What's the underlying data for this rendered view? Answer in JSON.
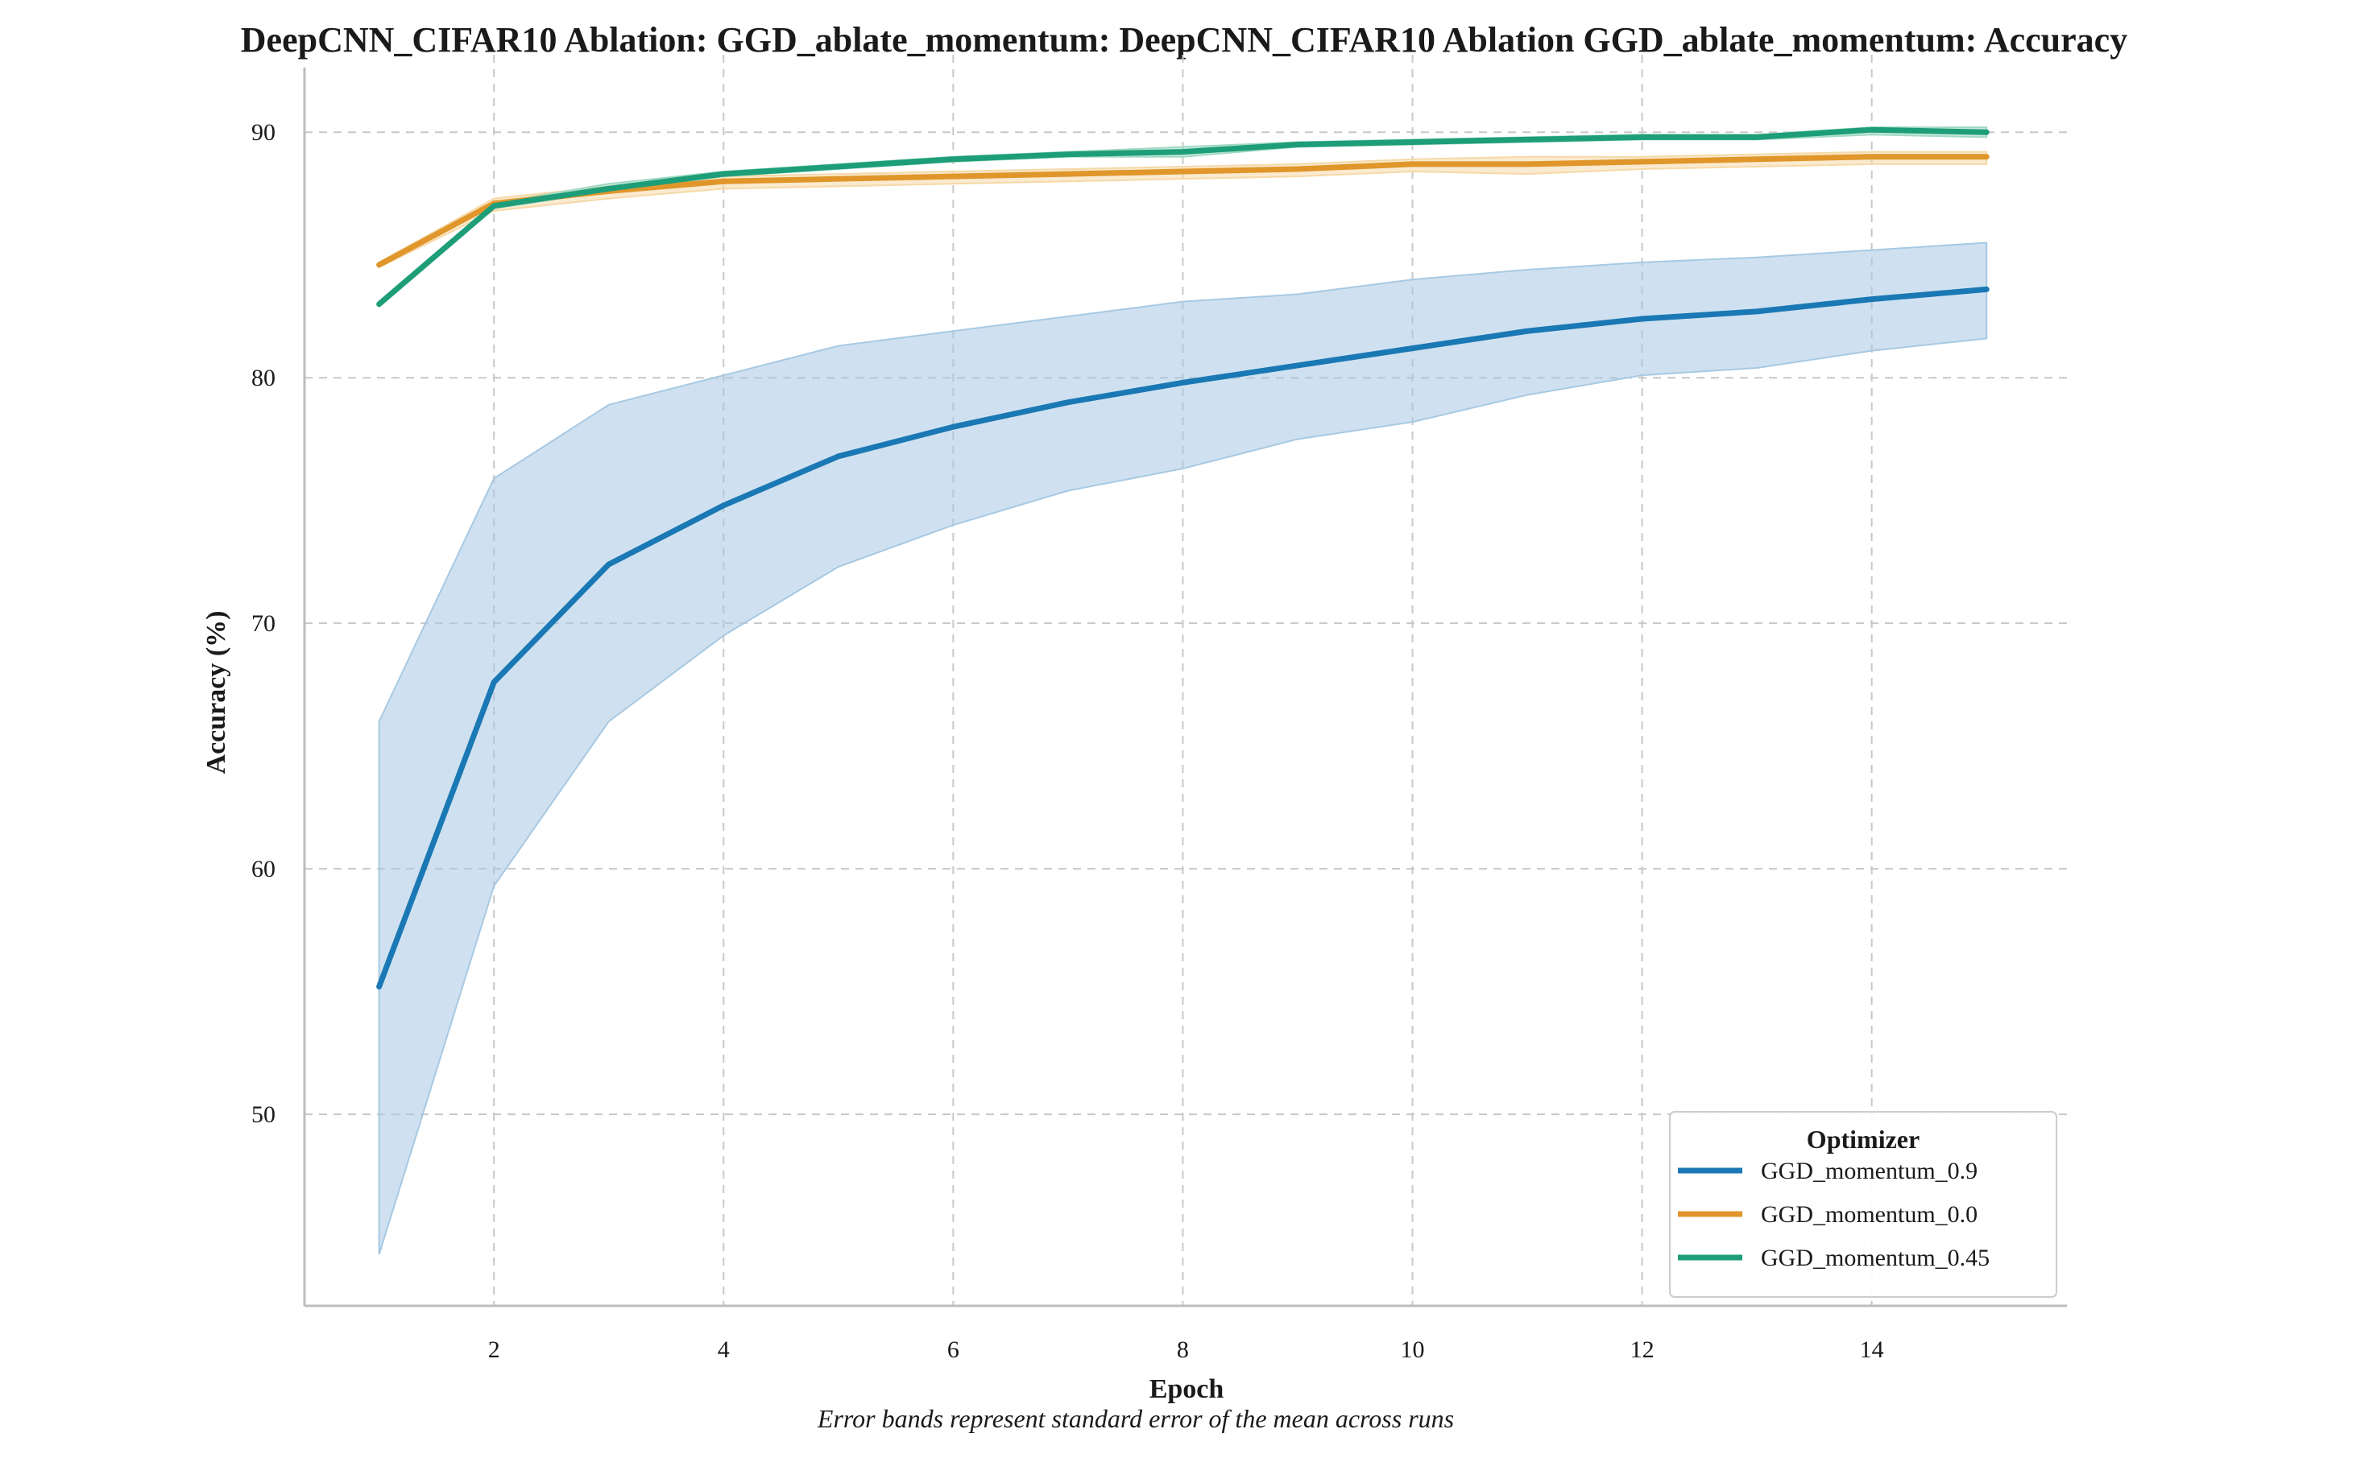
{
  "chart_data": {
    "type": "line",
    "title": "DeepCNN_CIFAR10 Ablation: GGD_ablate_momentum: DeepCNN_CIFAR10 Ablation GGD_ablate_momentum: Accuracy",
    "xlabel": "Epoch",
    "ylabel": "Accuracy (%)",
    "caption": "Error bands represent standard error of the mean across runs",
    "xlim": [
      0.35,
      15.7
    ],
    "ylim": [
      42.2,
      92.5
    ],
    "xticks": [
      2,
      4,
      6,
      8,
      10,
      12,
      14
    ],
    "yticks": [
      50,
      60,
      70,
      80,
      90
    ],
    "grid": true,
    "legend": {
      "title": "Optimizer",
      "placement": "bottom-right"
    },
    "x": [
      1,
      2,
      3,
      4,
      5,
      6,
      7,
      8,
      9,
      10,
      11,
      12,
      13,
      14,
      15
    ],
    "series": [
      {
        "name": "GGD_momentum_0.9",
        "color": "#1a78b4",
        "band_color": "#a7c9e3",
        "values": [
          55.2,
          67.6,
          72.4,
          74.8,
          76.8,
          78.0,
          79.0,
          79.8,
          80.5,
          81.2,
          81.9,
          82.4,
          82.7,
          83.2,
          83.6
        ],
        "lower": [
          44.3,
          59.3,
          66.0,
          69.5,
          72.3,
          74.0,
          75.4,
          76.3,
          77.5,
          78.2,
          79.3,
          80.1,
          80.4,
          81.1,
          81.6
        ],
        "upper": [
          66.0,
          75.9,
          78.9,
          80.1,
          81.3,
          81.9,
          82.5,
          83.1,
          83.4,
          84.0,
          84.4,
          84.7,
          84.9,
          85.2,
          85.5
        ]
      },
      {
        "name": "GGD_momentum_0.0",
        "color": "#e0962a",
        "band_color": "#f6d9a8",
        "values": [
          84.6,
          87.1,
          87.6,
          88.0,
          88.1,
          88.2,
          88.3,
          88.4,
          88.5,
          88.7,
          88.7,
          88.8,
          88.9,
          89.0,
          89.0
        ],
        "lower": [
          84.5,
          86.8,
          87.3,
          87.7,
          87.8,
          87.9,
          88.0,
          88.1,
          88.2,
          88.4,
          88.3,
          88.5,
          88.6,
          88.7,
          88.7
        ],
        "upper": [
          84.7,
          87.3,
          87.8,
          88.2,
          88.3,
          88.4,
          88.5,
          88.6,
          88.7,
          88.9,
          89.0,
          89.0,
          89.1,
          89.2,
          89.2
        ]
      },
      {
        "name": "GGD_momentum_0.45",
        "color": "#1d9e78",
        "band_color": "#a2d9c4",
        "values": [
          83.0,
          87.0,
          87.7,
          88.3,
          88.6,
          88.9,
          89.1,
          89.2,
          89.5,
          89.6,
          89.7,
          89.8,
          89.8,
          90.1,
          90.0
        ],
        "lower": [
          82.9,
          86.9,
          87.6,
          88.2,
          88.5,
          88.8,
          89.0,
          89.0,
          89.4,
          89.5,
          89.6,
          89.7,
          89.7,
          89.9,
          89.8
        ],
        "upper": [
          83.1,
          87.1,
          87.9,
          88.4,
          88.7,
          89.0,
          89.2,
          89.4,
          89.6,
          89.7,
          89.8,
          89.9,
          89.9,
          90.2,
          90.2
        ]
      }
    ]
  }
}
